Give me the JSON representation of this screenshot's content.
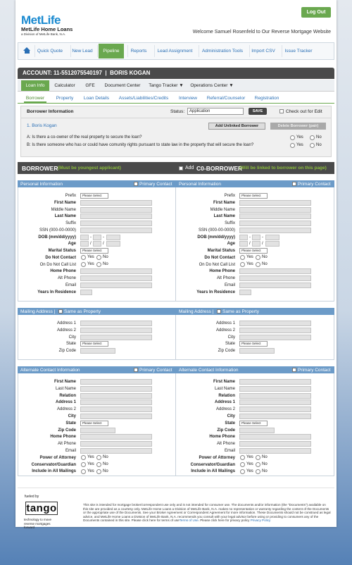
{
  "header": {
    "brand": "MetLife",
    "brand_sub": "MetLife Home Loans",
    "brand_note": "a Division of MetLife Bank, N.A.",
    "logout": "Log Out",
    "welcome": "Welcome Samuel Rosenfeld to Our Reverse Mortgage Website"
  },
  "nav": {
    "items": [
      "Quick Quote",
      "New Lead",
      "Pipeline",
      "Reports",
      "Lead Assignment",
      "Administration Tools",
      "Import CSV",
      "Issue Tracker"
    ],
    "active": 2
  },
  "account": {
    "title": "ACCOUNT: 11-5512075540197  |  BORIS KOGAN"
  },
  "tabs": {
    "items": [
      "Loan Info",
      "Calculator",
      "GFE",
      "Document Center",
      "Tango Tracker ▼",
      "Operations Center ▼"
    ],
    "active": 0
  },
  "subtabs": {
    "items": [
      "Borrower",
      "Property",
      "Loan Details",
      "Assets/Liabilities/Credits",
      "Interview",
      "Referral/Counselor",
      "Registration"
    ],
    "active": 0
  },
  "borrower_info": {
    "title": "Borrower Information",
    "status_label": "Status:",
    "status": "Application",
    "save": "SAVE",
    "checkout": "Check out for Edit",
    "borrower": "1. Boris Kogan",
    "add_button": "Add Unlinked Borrower",
    "delete_button": "Delete Borrower (pair)",
    "questions": [
      "A: Is there a co-owner of the real property to secure the loan?",
      "B: Is there someone who has or could have comunity rights pursuant to state law in the property that will secure the loan?"
    ]
  },
  "controls": {
    "yes": "Yes",
    "no": "No",
    "please_select": "Please Select",
    "ssn_sep": "-",
    "dob_sep": "/"
  },
  "borrower_bar": {
    "title": "BORROWER",
    "note": "(Must be youngest applicant)",
    "add": "Add",
    "co_title": "C0-BORROWER",
    "co_note": "(Will be linked to borrower on this page)"
  },
  "sections": [
    {
      "title": "Personal Information",
      "primary": "Primary Contact",
      "fields": [
        {
          "label": "Prefix",
          "input": "select"
        },
        {
          "label": "First Name",
          "bold": true,
          "input": "text"
        },
        {
          "label": "Middle Name",
          "input": "text"
        },
        {
          "label": "Last Name",
          "bold": true,
          "input": "text"
        },
        {
          "label": "Suffix",
          "input": "text"
        },
        {
          "label": "SSN (000-00-0000)",
          "input": "text"
        },
        {
          "label": "DOB (mm/dd/yyyy)",
          "bold": true,
          "input": "ssn"
        },
        {
          "label": "Age",
          "bold": true,
          "input": "dob"
        },
        {
          "label": "Marital Status",
          "bold": true,
          "input": "select"
        },
        {
          "label": "Do Not Contact",
          "bold": true,
          "input": "yesno"
        },
        {
          "label": "On Do Not Call List",
          "input": "yesno"
        },
        {
          "label": "Home Phone",
          "bold": true,
          "input": "text"
        },
        {
          "label": "Alt Phone",
          "input": "text"
        },
        {
          "label": "Email",
          "input": "text"
        },
        {
          "label": "Years In Residence",
          "bold": true,
          "input": "short"
        }
      ]
    },
    {
      "title": "Mailing Address |",
      "same": "Same as Property",
      "fields": [
        {
          "label": "Address 1",
          "input": "text"
        },
        {
          "label": "Address 2",
          "input": "text"
        },
        {
          "label": "City",
          "input": "text"
        },
        {
          "label": "State",
          "input": "select"
        },
        {
          "label": "Zip Code",
          "input": "mid"
        }
      ]
    },
    {
      "title": "Alternate Contact Information",
      "primary": "Primary Contact",
      "fields": [
        {
          "label": "First Name",
          "bold": true,
          "input": "text"
        },
        {
          "label": "Last Name",
          "input": "text"
        },
        {
          "label": "Relation",
          "bold": true,
          "input": "text"
        },
        {
          "label": "Address 1",
          "bold": true,
          "input": "text"
        },
        {
          "label": "Address 2",
          "input": "text"
        },
        {
          "label": "City",
          "bold": true,
          "input": "text"
        },
        {
          "label": "State",
          "bold": true,
          "input": "select"
        },
        {
          "label": "Zip Code",
          "bold": true,
          "input": "mid"
        },
        {
          "label": "Home Phone",
          "bold": true,
          "input": "text"
        },
        {
          "label": "Alt Phone",
          "input": "text"
        },
        {
          "label": "Email",
          "input": "text"
        },
        {
          "label": "Power of Attorney",
          "bold": true,
          "input": "yesno"
        },
        {
          "label": "Conservator/Guardian",
          "bold": true,
          "input": "yesno"
        },
        {
          "label": "Include in All Mailings",
          "bold": true,
          "input": "yesno"
        }
      ]
    }
  ],
  "footer": {
    "fueled": "fueled by",
    "logo": "tango",
    "tagline": "technology to move reverse mortgages forward",
    "disclaimer": "This site is intended for mortgage broker/correspondent use only and is not intended for consumer use. The documents and/or information (the \"Documents\") available on this site are provided as a courtesy only. MetLife Home Loans a Division of MetLife Bank, N.A. makes no representation or warranty regarding the content of the Documents or the appropriate use of the Documents. See your Broker Agreement or Correspondent Agreement for more information. These Documents should not be construed as legal advice, and MetLife Home Loans a Division of MetLife Bank, N.A. recommends you consult with your legal advisor before using or providing to consumers any of the Documents contained in this site. Please click here for terms of use",
    "terms_link": "Terms of Use",
    "privacy_text": ". Please click here for privacy policy",
    "privacy_link": "Privacy Policy"
  }
}
